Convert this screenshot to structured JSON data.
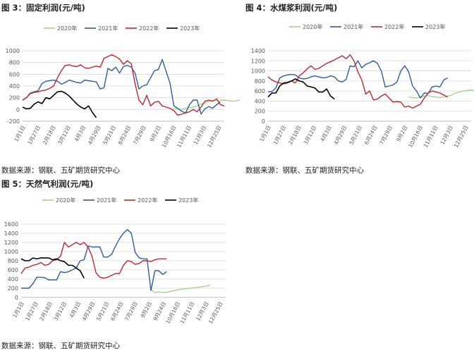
{
  "colors": {
    "y2020": "#A9D18E",
    "y2021": "#2E5C9E",
    "y2022": "#C0272D",
    "y2023": "#000000",
    "grid": "#D9D9D9",
    "axis": "#BFBFBF"
  },
  "legend_labels": [
    "2020年",
    "2021年",
    "2022年",
    "2023年"
  ],
  "x_tick_labels": [
    "1月1日",
    "1月27日",
    "2月18日",
    "3月12日",
    "4月3日",
    "4月29日",
    "5月21日",
    "6月24日",
    "7月29日",
    "9月2日",
    "10月16日",
    "11月11日",
    "12月3日",
    "12月25日"
  ],
  "x_tick_labels_b": [
    "1月1日",
    "1月27日",
    "2月18日",
    "3月12日",
    "4月3日",
    "4月29日",
    "5月21日",
    "6月24日",
    "7月29日",
    "9月2日",
    "9月24日",
    "10月16日",
    "11月11日",
    "12月3日",
    "12月25日"
  ],
  "panels": [
    {
      "title": "图 3：固定利润(元/吨)",
      "source": "数据来源：钢联、五矿期货研究中心",
      "chart_data": {
        "type": "line",
        "title": "图 3：固定利润(元/吨)",
        "ylim": [
          -200,
          1000
        ],
        "yticks": [
          -200,
          0,
          200,
          400,
          600,
          800,
          1000
        ],
        "x_tick_labels": [
          "1月1日",
          "1月27日",
          "2月18日",
          "3月12日",
          "4月3日",
          "4月29日",
          "5月21日",
          "6月24日",
          "7月29日",
          "9月2日",
          "10月16日",
          "11月11日",
          "12月3日",
          "12月25日"
        ],
        "grid": true,
        "legend": "top",
        "series": [
          {
            "name": "2020年",
            "color": "#A9D18E",
            "x_start": 39,
            "values": [
              20,
              10,
              0,
              20,
              30,
              40,
              60,
              90,
              110,
              140,
              150,
              150,
              155,
              160,
              150,
              140,
              145,
              160
            ]
          },
          {
            "name": "2021年",
            "color": "#2E5C9E",
            "x_start": 0,
            "values": [
              160,
              200,
              280,
              300,
              320,
              440,
              480,
              490,
              500,
              480,
              430,
              460,
              500,
              480,
              460,
              450,
              500,
              490,
              480,
              470,
              350,
              370,
              700,
              660,
              720,
              620,
              730,
              750,
              720,
              620,
              350,
              400,
              420,
              540,
              660,
              680,
              850,
              650,
              450,
              60,
              20,
              -30,
              -60,
              80,
              160,
              160,
              -80,
              10,
              50,
              20,
              80,
              130
            ]
          },
          {
            "name": "2022年",
            "color": "#C0272D",
            "x_start": 0,
            "values": [
              160,
              200,
              270,
              290,
              300,
              320,
              330,
              360,
              400,
              540,
              660,
              750,
              760,
              740,
              730,
              760,
              710,
              700,
              720,
              740,
              720,
              870,
              900,
              930,
              900,
              860,
              770,
              830,
              780,
              440,
              160,
              80,
              240,
              60,
              120,
              140,
              60,
              40,
              20,
              -20,
              -100,
              -80,
              -60,
              -40,
              0,
              -40,
              40,
              140,
              160,
              140,
              180,
              80,
              60
            ]
          },
          {
            "name": "2023年",
            "color": "#000000",
            "x_start": 0,
            "values": [
              40,
              10,
              20,
              90,
              130,
              100,
              200,
              180,
              240,
              300,
              310,
              280,
              230,
              160,
              90,
              40,
              10,
              60,
              -50,
              -140
            ]
          }
        ]
      }
    },
    {
      "title": "图 4：水煤浆利润(元/吨)",
      "source": "数据来源：钢联、五矿期货研究中心",
      "chart_data": {
        "type": "line",
        "title": "图 4：水煤浆利润(元/吨)",
        "ylim": [
          0,
          1400
        ],
        "yticks": [
          0,
          200,
          400,
          600,
          800,
          1000,
          1200,
          1400
        ],
        "x_tick_labels": [
          "1月1日",
          "1月27日",
          "2月18日",
          "3月12日",
          "4月3日",
          "4月29日",
          "5月21日",
          "6月24日",
          "7月29日",
          "9月2日",
          "10月16日",
          "11月11日",
          "12月3日",
          "12月25日"
        ],
        "grid": true,
        "legend": "top",
        "series": [
          {
            "name": "2020年",
            "color": "#A9D18E",
            "x_start": 36,
            "values": [
              480,
              470,
              460,
              480,
              500,
              510,
              490,
              480,
              470,
              480,
              500,
              520,
              560,
              580,
              600,
              610,
              620,
              600,
              580,
              580,
              590
            ]
          },
          {
            "name": "2021年",
            "color": "#2E5C9E",
            "x_start": 0,
            "values": [
              580,
              590,
              660,
              860,
              900,
              920,
              930,
              920,
              860,
              840,
              850,
              880,
              900,
              880,
              860,
              870,
              900,
              880,
              800,
              780,
              830,
              1100,
              1080,
              1200,
              1060,
              1130,
              1160,
              1200,
              1150,
              1000,
              680,
              700,
              720,
              780,
              1000,
              1100,
              980,
              700,
              600,
              460,
              560,
              550,
              680,
              700,
              680,
              820,
              860
            ]
          },
          {
            "name": "2022年",
            "color": "#C0272D",
            "x_start": 0,
            "values": [
              880,
              820,
              780,
              760,
              740,
              760,
              800,
              760,
              900,
              960,
              1040,
              1100,
              1030,
              1050,
              1100,
              1150,
              1180,
              1220,
              1260,
              1300,
              1240,
              1320,
              1200,
              980,
              820,
              540,
              600,
              420,
              440,
              500,
              540,
              460,
              380,
              390,
              380,
              280,
              300,
              260,
              300,
              340,
              460,
              560,
              600,
              580,
              560,
              520,
              480
            ]
          },
          {
            "name": "2023年",
            "color": "#000000",
            "x_start": 0,
            "values": [
              480,
              560,
              560,
              700,
              760,
              770,
              800,
              840,
              800,
              780,
              700,
              680,
              660,
              580,
              580,
              640,
              500,
              440
            ]
          }
        ]
      }
    },
    {
      "title": "图 5：天然气利润(元/吨)",
      "source": "数据来源：钢联、五矿期货研究中心",
      "chart_data": {
        "type": "line",
        "title": "图 5：天然气利润(元/吨)",
        "ylim": [
          0,
          1600
        ],
        "yticks": [
          0,
          200,
          400,
          600,
          800,
          1000,
          1200,
          1400,
          1600
        ],
        "x_tick_labels": [
          "1月1日",
          "1月27日",
          "2月18日",
          "3月12日",
          "4月3日",
          "4月29日",
          "5月21日",
          "6月24日",
          "7月29日",
          "9月2日",
          "9月24日",
          "10月16日",
          "11月11日",
          "12月3日",
          "12月25日"
        ],
        "grid": true,
        "legend": "top",
        "series": [
          {
            "name": "2020年",
            "color": "#A9D18E",
            "x_start": 33,
            "values": [
              180,
              100,
              120,
              100,
              110,
              130,
              150,
              170,
              180,
              190,
              200,
              210,
              220,
              230,
              250,
              260
            ]
          },
          {
            "name": "2021年",
            "color": "#2E5C9E",
            "x_start": 0,
            "values": [
              200,
              200,
              200,
              300,
              440,
              440,
              430,
              380,
              380,
              380,
              560,
              540,
              560,
              600,
              640,
              800,
              820,
              1120,
              1100,
              1100,
              1100,
              880,
              880,
              940,
              1120,
              1280,
              1400,
              1480,
              1400,
              980,
              860,
              840,
              840,
              150,
              580,
              580,
              500,
              560
            ]
          },
          {
            "name": "2022年",
            "color": "#C0272D",
            "x_start": 0,
            "values": [
              520,
              640,
              660,
              700,
              720,
              760,
              700,
              720,
              800,
              820,
              900,
              1200,
              1100,
              1150,
              1200,
              1150,
              1200,
              1100,
              900,
              540,
              440,
              420,
              440,
              480,
              520,
              520,
              700,
              800,
              780,
              720,
              740,
              800,
              800,
              780,
              820,
              840,
              840,
              840
            ]
          },
          {
            "name": "2023年",
            "color": "#000000",
            "x_start": 0,
            "values": [
              840,
              800,
              800,
              860,
              840,
              860,
              860,
              860,
              820,
              840,
              800,
              780,
              700,
              700,
              640,
              580,
              420
            ]
          }
        ]
      }
    }
  ]
}
